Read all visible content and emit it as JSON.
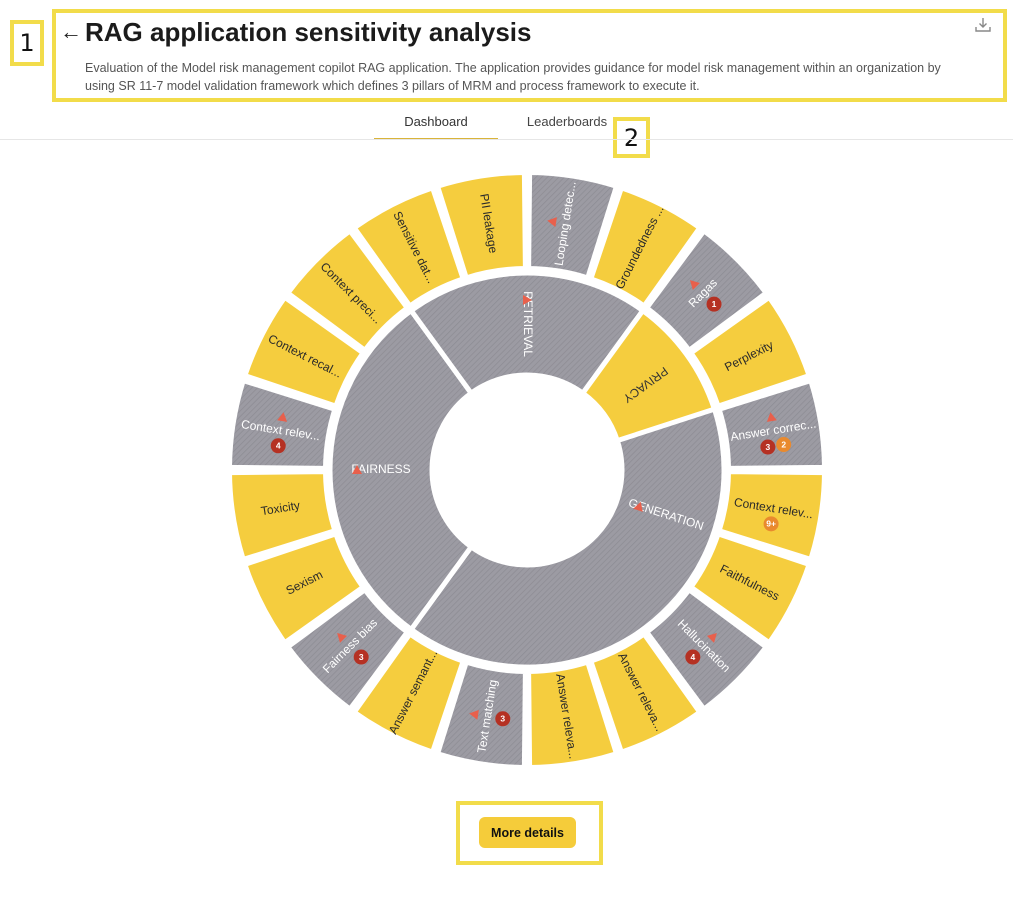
{
  "header": {
    "back_icon": "arrow-left-icon",
    "title": "RAG application sensitivity analysis",
    "description": "Evaluation of the Model risk management copilot RAG application. The application provides guidance for model risk management within an organization by using SR 11-7 model validation framework which defines 3 pillars of MRM and process framework to execute it.",
    "download_icon": "download-icon"
  },
  "tabs": [
    {
      "label": "Dashboard",
      "active": true
    },
    {
      "label": "Leaderboards",
      "active": false
    }
  ],
  "annotations": {
    "n1": "1",
    "n2": "2"
  },
  "colors": {
    "pass": "#f5cd3e",
    "fail": "#9c9ba3",
    "badge_red": "#b53123",
    "badge_orange": "#e98a2e",
    "warn": "#e8604c"
  },
  "sunburst": {
    "categories": [
      {
        "name": "GENERATION",
        "status": "fail",
        "warning": true,
        "start": 0,
        "end": 12
      },
      {
        "name": "FAIRNESS",
        "status": "fail",
        "warning": true,
        "start": 12,
        "end": 18
      },
      {
        "name": "RETRIEVAL",
        "status": "fail",
        "warning": true,
        "start": 18,
        "end": 22
      },
      {
        "name": "PRIVACY",
        "status": "pass",
        "warning": false,
        "start": 22,
        "end": 24
      }
    ],
    "metrics": [
      {
        "label": "Looping detec...",
        "status": "fail",
        "warning": true,
        "badges": []
      },
      {
        "label": "Groundedness ...",
        "status": "pass",
        "warning": false,
        "badges": []
      },
      {
        "label": "Ragas",
        "status": "fail",
        "warning": true,
        "badges": [
          {
            "text": "1",
            "color": "red"
          }
        ]
      },
      {
        "label": "Perplexity",
        "status": "pass",
        "warning": false,
        "badges": []
      },
      {
        "label": "Answer correc...",
        "status": "fail",
        "warning": true,
        "badges": [
          {
            "text": "3",
            "color": "red"
          },
          {
            "text": "2",
            "color": "orange"
          }
        ]
      },
      {
        "label": "Context relev...",
        "status": "pass",
        "warning": false,
        "badges": [
          {
            "text": "9+",
            "color": "orange"
          }
        ]
      },
      {
        "label": "Faithfulness",
        "status": "pass",
        "warning": false,
        "badges": []
      },
      {
        "label": "Hallucination",
        "status": "fail",
        "warning": true,
        "badges": [
          {
            "text": "4",
            "color": "red"
          }
        ]
      },
      {
        "label": "Answer releva...",
        "status": "pass",
        "warning": false,
        "badges": []
      },
      {
        "label": "Answer releva...",
        "status": "pass",
        "warning": false,
        "badges": []
      },
      {
        "label": "Text matching",
        "status": "fail",
        "warning": true,
        "badges": [
          {
            "text": "3",
            "color": "red"
          }
        ]
      },
      {
        "label": "Answer semant...",
        "status": "pass",
        "warning": false,
        "badges": []
      },
      {
        "label": "Fairness bias",
        "status": "fail",
        "warning": true,
        "badges": [
          {
            "text": "3",
            "color": "red"
          }
        ]
      },
      {
        "label": "Sexism",
        "status": "pass",
        "warning": false,
        "badges": []
      },
      {
        "label": "Toxicity",
        "status": "pass",
        "warning": false,
        "badges": []
      },
      {
        "label": "Context relev...",
        "status": "fail",
        "warning": true,
        "badges": [
          {
            "text": "4",
            "color": "red"
          }
        ]
      },
      {
        "label": "Context recal...",
        "status": "pass",
        "warning": false,
        "badges": []
      },
      {
        "label": "Context preci...",
        "status": "pass",
        "warning": false,
        "badges": []
      },
      {
        "label": "Sensitive dat...",
        "status": "pass",
        "warning": false,
        "badges": []
      },
      {
        "label": "PII leakage",
        "status": "pass",
        "warning": false,
        "badges": []
      }
    ]
  },
  "more_details_label": "More details"
}
